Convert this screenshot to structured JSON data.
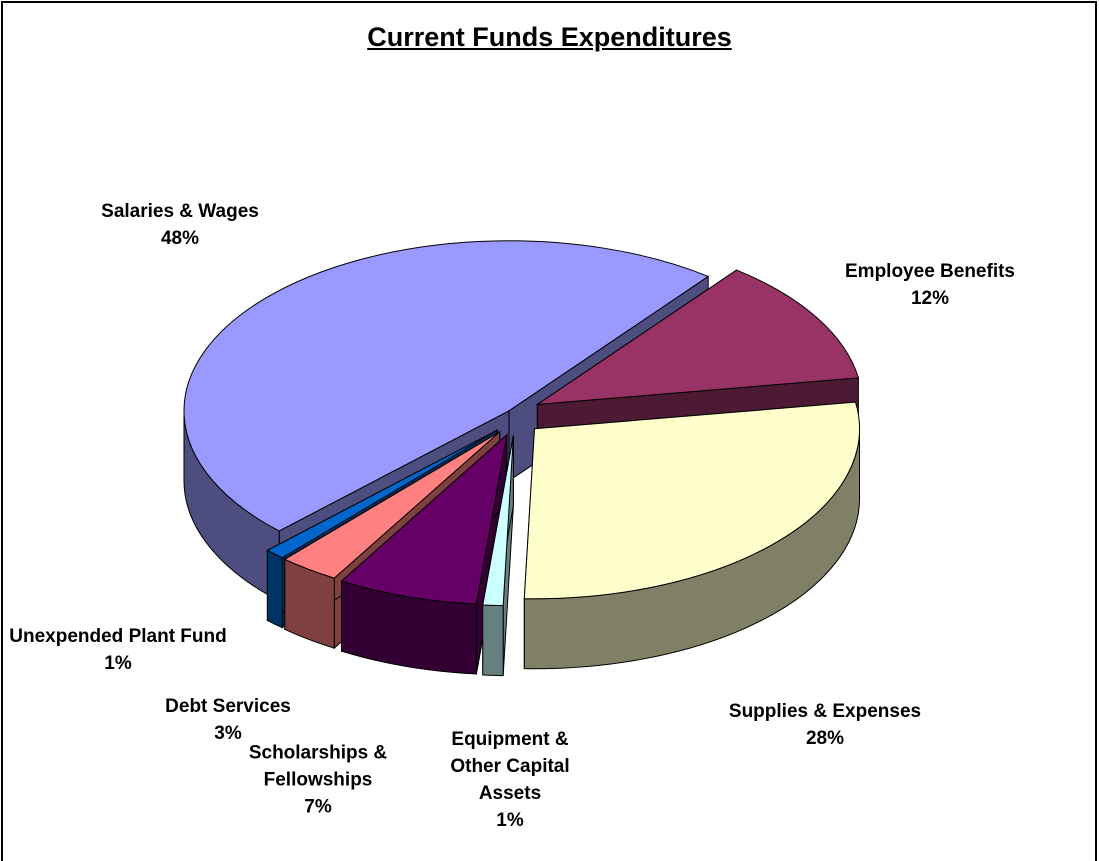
{
  "chart_data": {
    "type": "pie",
    "title": "Current Funds Expenditures",
    "categories": [
      "Salaries & Wages",
      "Employee Benefits",
      "Supplies & Expenses",
      "Equipment & Other Capital Assets",
      "Scholarships & Fellowships",
      "Debt Services",
      "Unexpended Plant Fund"
    ],
    "values": [
      48,
      12,
      28,
      1,
      7,
      3,
      1
    ],
    "value_labels": [
      "48%",
      "12%",
      "28%",
      "1%",
      "7%",
      "3%",
      "1%"
    ],
    "colors": [
      "#9999ff",
      "#993366",
      "#ffffcc",
      "#ccffff",
      "#660066",
      "#ff8080",
      "#0066cc"
    ]
  }
}
